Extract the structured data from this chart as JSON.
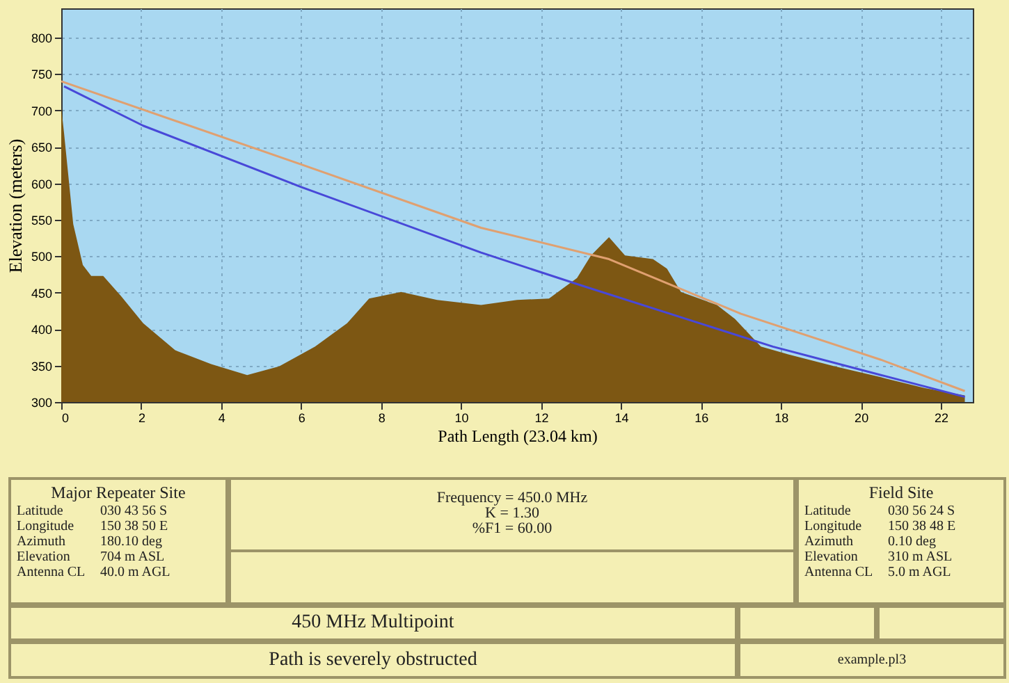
{
  "chart_data": {
    "type": "area",
    "xlabel": "Path Length (23.04 km)",
    "ylabel": "Elevation (meters)",
    "xlim": [
      0,
      22.8
    ],
    "ylim": [
      300,
      840
    ],
    "xticks": [
      0,
      2,
      4,
      6,
      8,
      10,
      12,
      14,
      16,
      18,
      20,
      22
    ],
    "yticks": [
      300,
      350,
      400,
      450,
      500,
      550,
      600,
      650,
      700,
      750,
      800
    ],
    "grid": true,
    "series": [
      {
        "type": "area",
        "color": "#7d5713",
        "x": [
          0,
          0.07,
          0.3,
          0.54,
          0.75,
          1.05,
          1.5,
          2.05,
          2.85,
          3.75,
          4.65,
          5.45,
          6.35,
          7.15,
          7.7,
          8.5,
          9.4,
          10.5,
          11.4,
          12.2,
          12.9,
          13.25,
          13.7,
          14.1,
          14.8,
          15.15,
          15.5,
          16.4,
          16.85,
          17.5,
          18.2,
          19.35,
          20.5,
          21.6,
          22.6
        ],
        "values": [
          704,
          669,
          544,
          488,
          473,
          473,
          445,
          408,
          371,
          352,
          337,
          349,
          376,
          408,
          442,
          451,
          440,
          433,
          440,
          442,
          470,
          501,
          526,
          501,
          496,
          483,
          451,
          433,
          414,
          376,
          365,
          349,
          334,
          319,
          309
        ]
      },
      {
        "type": "line",
        "color": "#4848d8",
        "x": [
          0.07,
          2.05,
          6,
          10.5,
          13,
          17.8,
          20.5,
          22.6
        ],
        "values": [
          733,
          679,
          595,
          505,
          460,
          376,
          337,
          307
        ]
      },
      {
        "type": "line",
        "color": "#e0a070",
        "x": [
          0,
          6,
          10.5,
          13.7,
          17,
          20.5,
          22.6
        ],
        "values": [
          740,
          626,
          539,
          496,
          421,
          358,
          315
        ]
      }
    ],
    "annotations": [
      "Major Repeater Site",
      "Latitude",
      "030 43 56 S",
      "Longitude",
      "150 38 50 E",
      "Azimuth",
      "180.10 deg",
      "Elevation",
      "704 m ASL",
      "Antenna CL",
      "40.0 m AGL",
      "Frequency = 450.0 MHz",
      "K = 1.30",
      "%F1 = 60.00",
      "Field Site",
      "Latitude",
      "030 56 24 S",
      "Longitude",
      "150 38 48 E",
      "Azimuth",
      "0.10 deg",
      "Elevation",
      "310 m ASL",
      "Antenna CL",
      "5.0 m AGL",
      "450 MHz Multipoint",
      "Path is severely obstructed",
      "example.pl3"
    ]
  }
}
